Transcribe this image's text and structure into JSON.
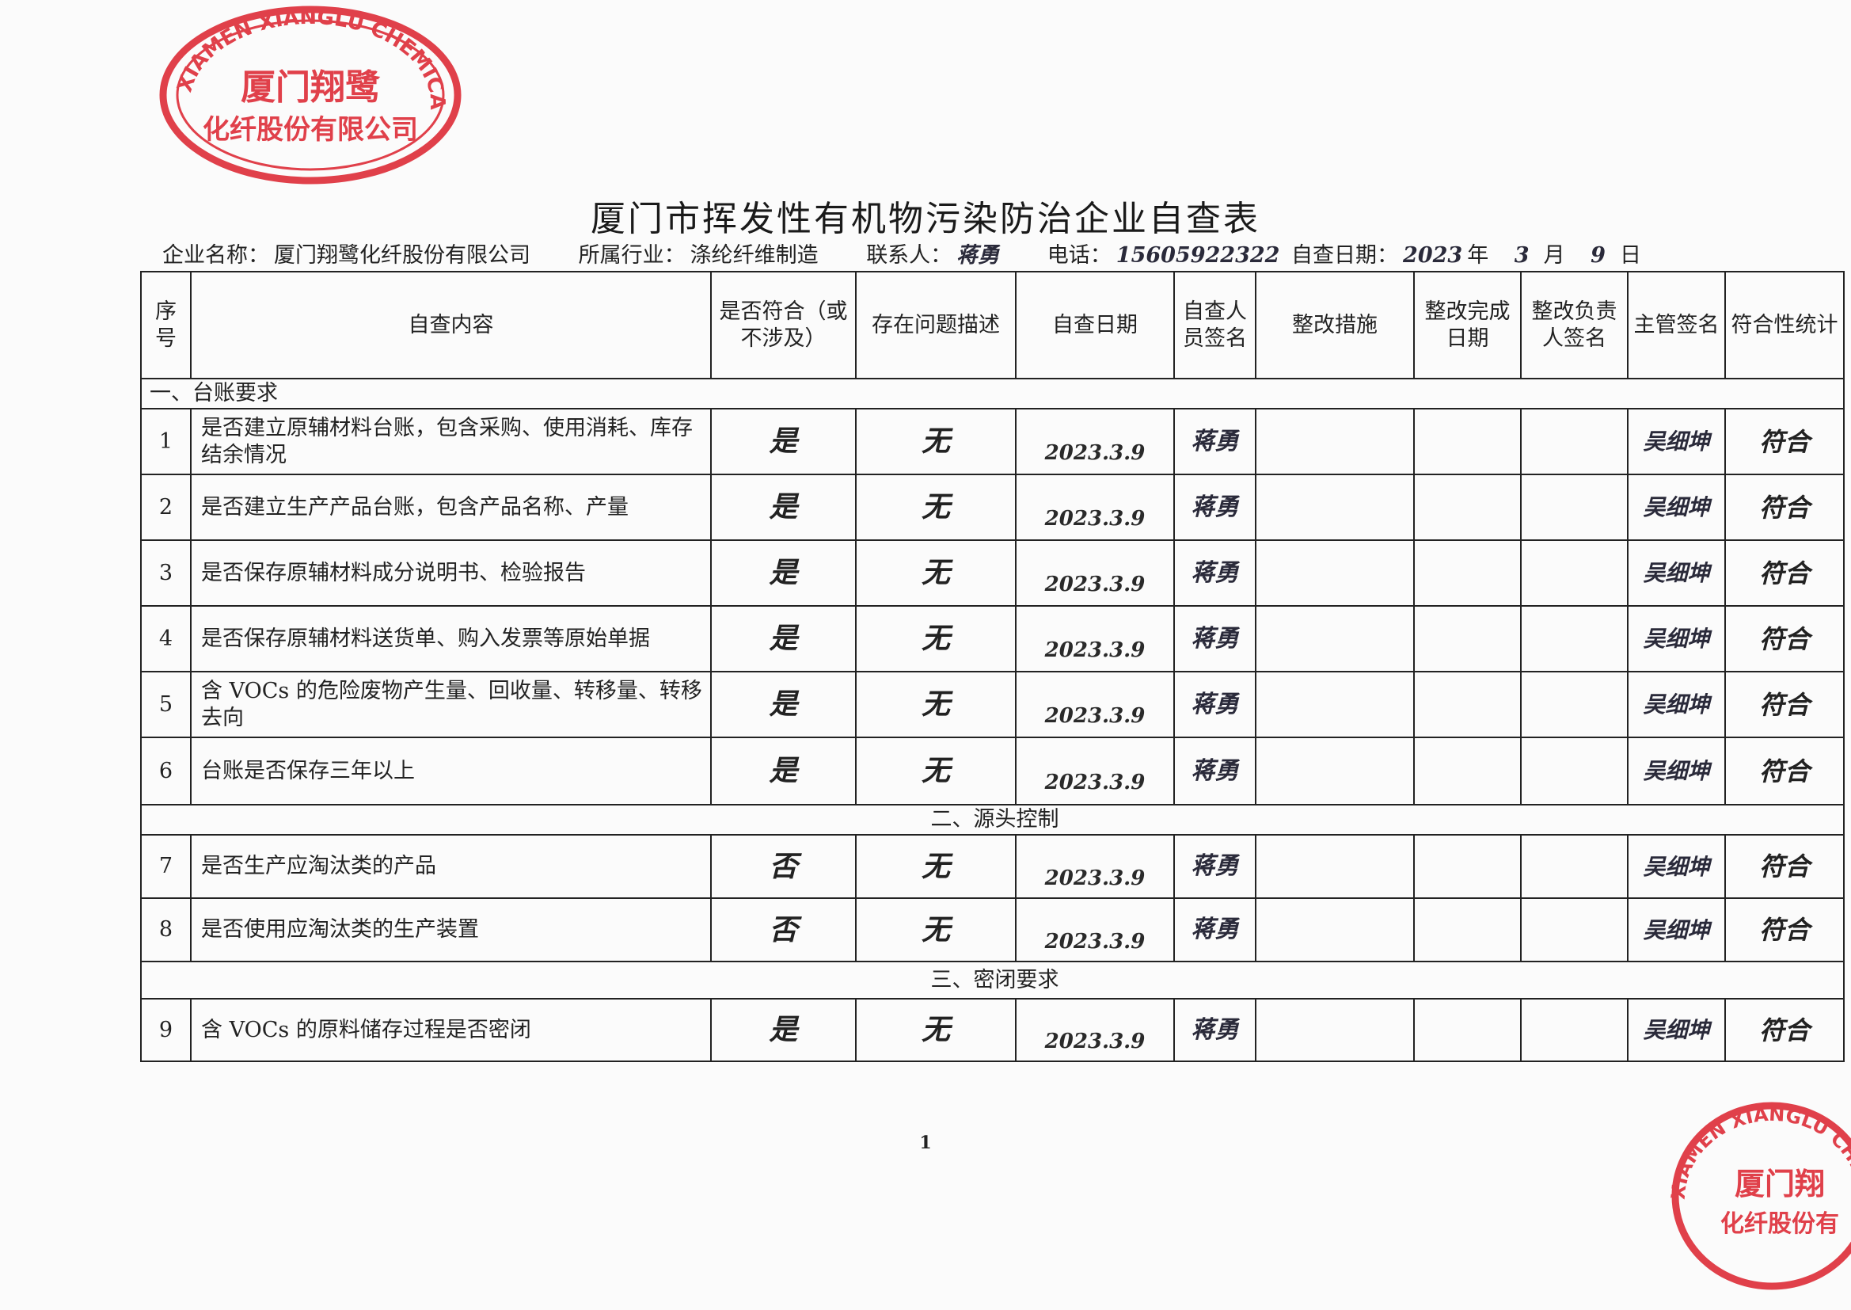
{
  "title": "厦门市挥发性有机物污染防治企业自查表",
  "info": {
    "company_label": "企业名称：",
    "company": "厦门翔鹭化纤股份有限公司",
    "industry_label": "所属行业：",
    "industry": "涤纶纤维制造",
    "contact_label": "联系人：",
    "contact": "蒋勇",
    "phone_label": "电话：",
    "phone": "15605922322",
    "date_label": "自查日期：",
    "year": "2023",
    "year_unit": "年",
    "month": "3",
    "month_unit": "月",
    "day": "9",
    "day_unit": "日"
  },
  "headers": [
    "序号",
    "自查内容",
    "是否符合（或不涉及）",
    "存在问题描述",
    "自查日期",
    "自查人员签名",
    "整改措施",
    "整改完成日期",
    "整改负责人签名",
    "主管签名",
    "符合性统计"
  ],
  "sections": [
    {
      "label": "一、台账要求",
      "rows": [
        {
          "no": "1",
          "content": "是否建立原辅材料台账，包含采购、使用消耗、库存结余情况",
          "compliant": "是",
          "issue": "无",
          "date": "2023.3.9",
          "inspector": "蒋勇",
          "measures": "",
          "complete_date": "",
          "owner": "",
          "supervisor": "吴细坤",
          "stat": "符合"
        },
        {
          "no": "2",
          "content": "是否建立生产产品台账，包含产品名称、产量",
          "compliant": "是",
          "issue": "无",
          "date": "2023.3.9",
          "inspector": "蒋勇",
          "measures": "",
          "complete_date": "",
          "owner": "",
          "supervisor": "吴细坤",
          "stat": "符合"
        },
        {
          "no": "3",
          "content": "是否保存原辅材料成分说明书、检验报告",
          "compliant": "是",
          "issue": "无",
          "date": "2023.3.9",
          "inspector": "蒋勇",
          "measures": "",
          "complete_date": "",
          "owner": "",
          "supervisor": "吴细坤",
          "stat": "符合"
        },
        {
          "no": "4",
          "content": "是否保存原辅材料送货单、购入发票等原始单据",
          "compliant": "是",
          "issue": "无",
          "date": "2023.3.9",
          "inspector": "蒋勇",
          "measures": "",
          "complete_date": "",
          "owner": "",
          "supervisor": "吴细坤",
          "stat": "符合"
        },
        {
          "no": "5",
          "content": "含 VOCs 的危险废物产生量、回收量、转移量、转移去向",
          "compliant": "是",
          "issue": "无",
          "date": "2023.3.9",
          "inspector": "蒋勇",
          "measures": "",
          "complete_date": "",
          "owner": "",
          "supervisor": "吴细坤",
          "stat": "符合"
        },
        {
          "no": "6",
          "content": "台账是否保存三年以上",
          "compliant": "是",
          "issue": "无",
          "date": "2023.3.9",
          "inspector": "蒋勇",
          "measures": "",
          "complete_date": "",
          "owner": "",
          "supervisor": "吴细坤",
          "stat": "符合"
        }
      ]
    },
    {
      "label": "二、源头控制",
      "rows": [
        {
          "no": "7",
          "content": "是否生产应淘汰类的产品",
          "compliant": "否",
          "issue": "无",
          "date": "2023.3.9",
          "inspector": "蒋勇",
          "measures": "",
          "complete_date": "",
          "owner": "",
          "supervisor": "吴细坤",
          "stat": "符合"
        },
        {
          "no": "8",
          "content": "是否使用应淘汰类的生产装置",
          "compliant": "否",
          "issue": "无",
          "date": "2023.3.9",
          "inspector": "蒋勇",
          "measures": "",
          "complete_date": "",
          "owner": "",
          "supervisor": "吴细坤",
          "stat": "符合"
        }
      ]
    },
    {
      "label": "三、密闭要求",
      "rows": [
        {
          "no": "9",
          "content": "含 VOCs 的原料储存过程是否密闭",
          "compliant": "是",
          "issue": "无",
          "date": "2023.3.9",
          "inspector": "蒋勇",
          "measures": "",
          "complete_date": "",
          "owner": "",
          "supervisor": "吴细坤",
          "stat": "符合"
        }
      ]
    }
  ],
  "stamp": {
    "text_en": "XIAMEN XIANGLU CHEMICAL FIBER CO., LTD.",
    "text_cn_1": "厦门翔鹭",
    "text_cn_2": "化纤股份有限公司",
    "color": "#e0404a"
  },
  "page_number": "1"
}
